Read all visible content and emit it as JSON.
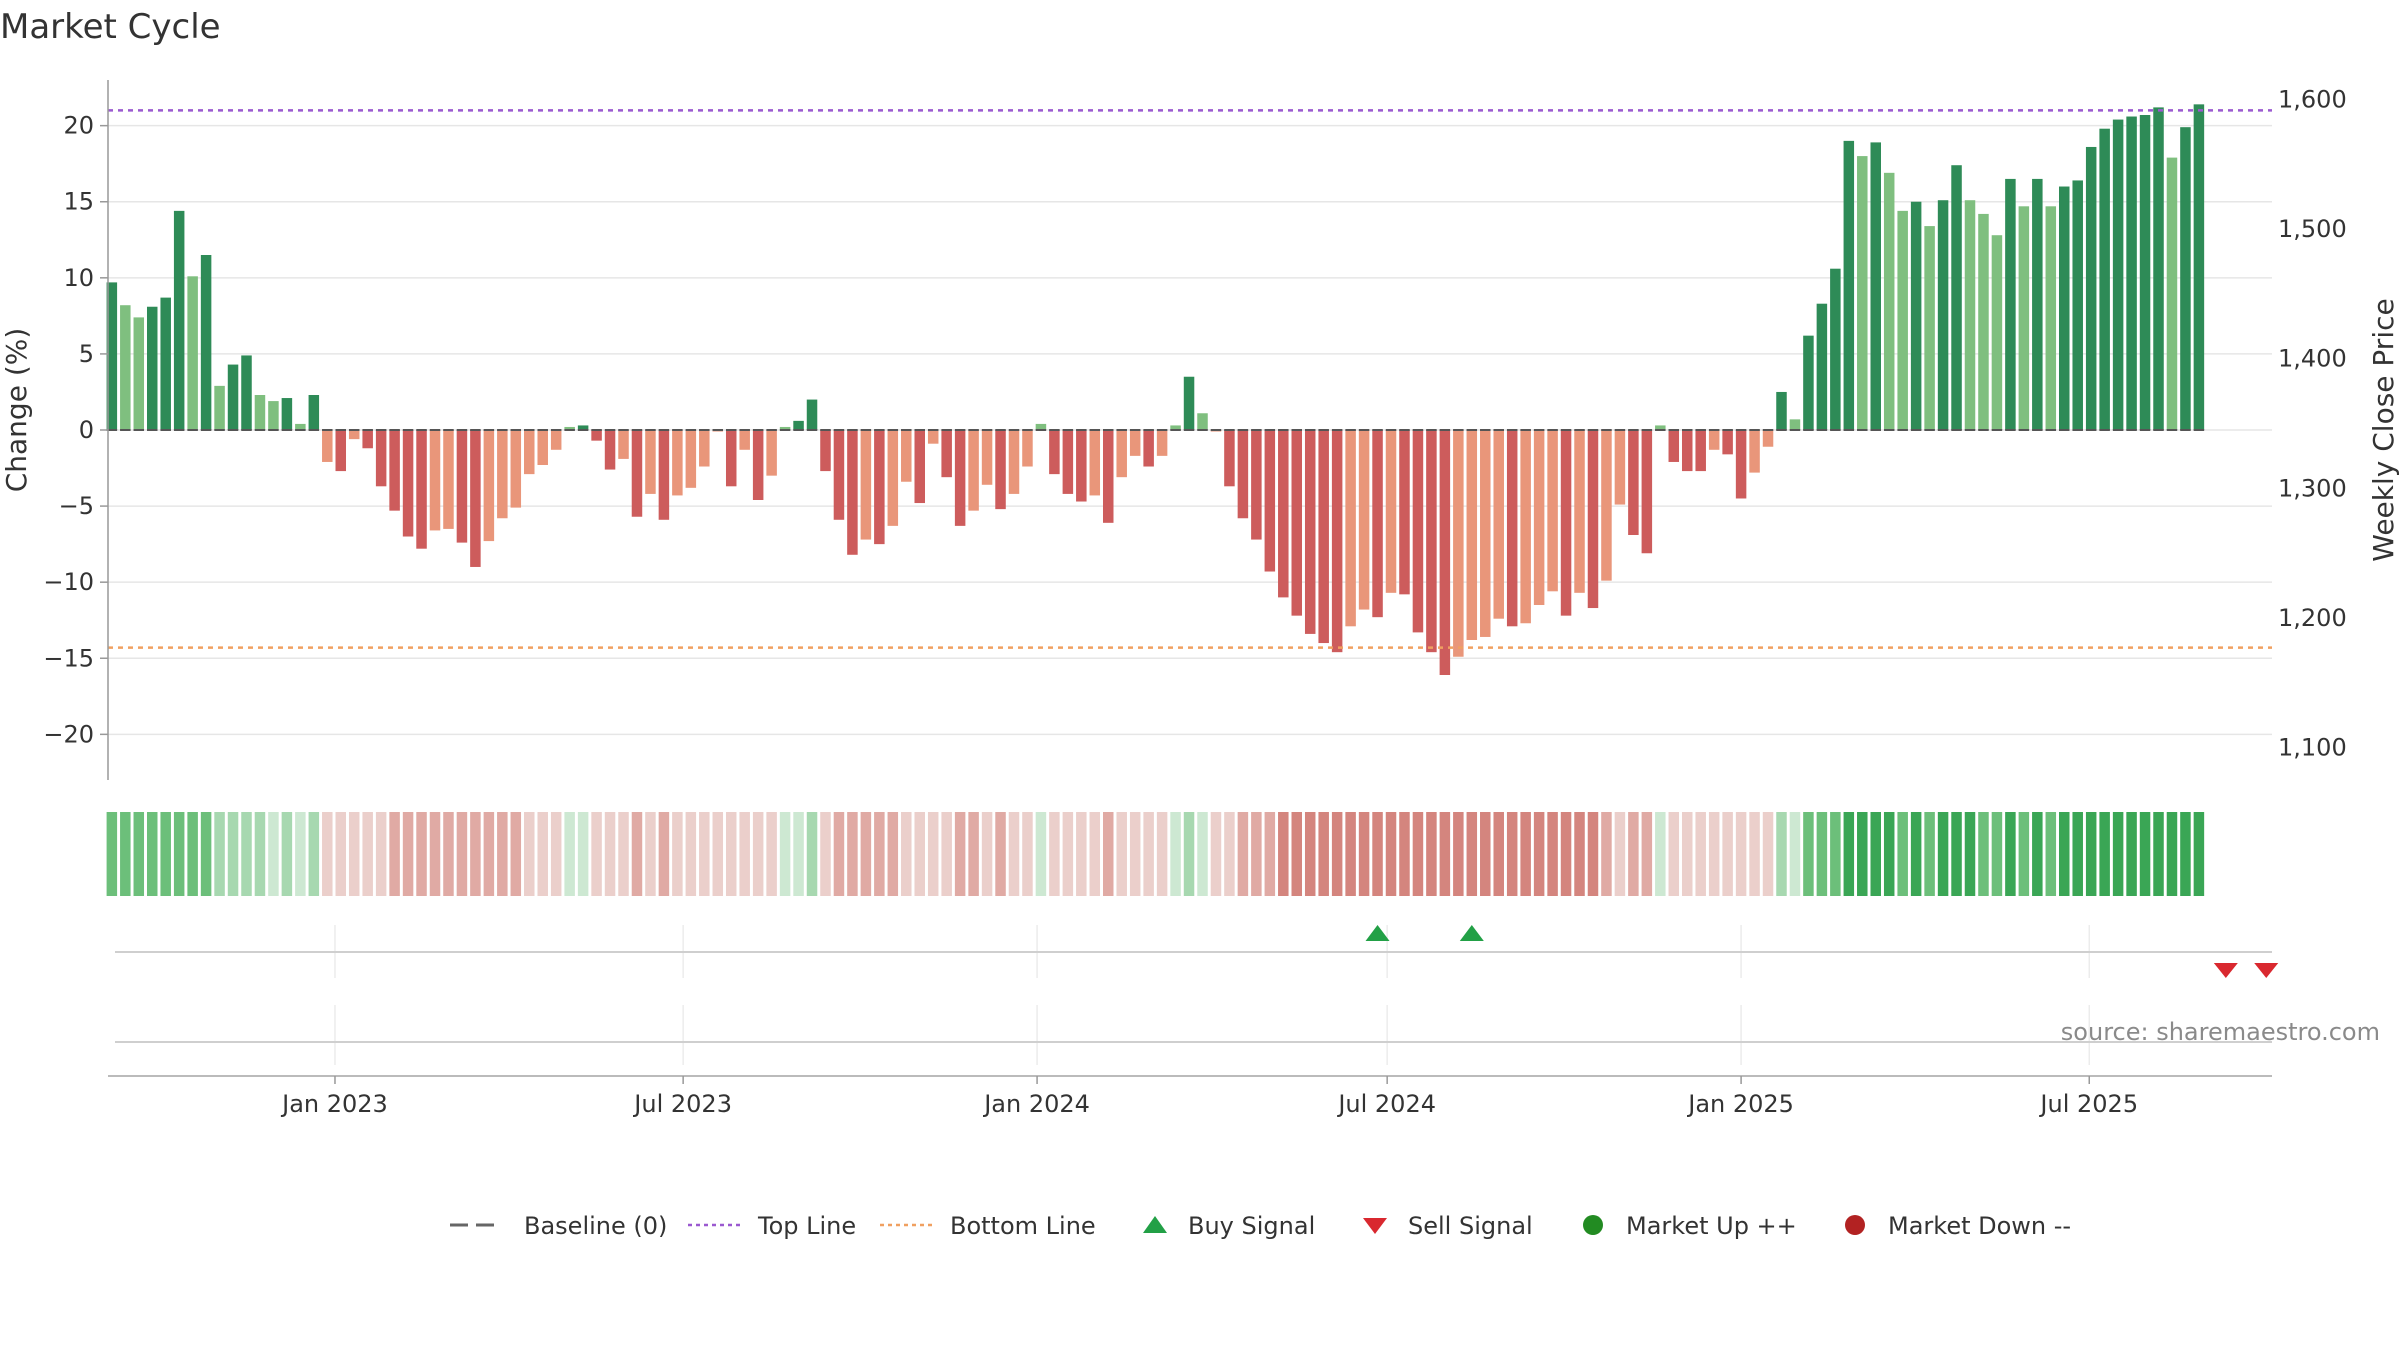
{
  "chart_data": {
    "type": "bar",
    "title": "Market Cycle",
    "ylabel": "Change (%)",
    "y2label": "Weekly Close Price",
    "ylim": [
      -23,
      23
    ],
    "y2lim": [
      1075,
      1615
    ],
    "yticks": [
      20,
      15,
      10,
      5,
      0,
      -5,
      -10,
      -15,
      -20
    ],
    "ytick_labels": [
      "20",
      "15",
      "10",
      "5",
      "0",
      "−5",
      "−10",
      "−15",
      "−20"
    ],
    "y2ticks": [
      1600,
      1500,
      1400,
      1300,
      1200,
      1100
    ],
    "y2tick_labels": [
      "1,600",
      "1,500",
      "1,400",
      "1,300",
      "1,200",
      "1,100"
    ],
    "x_start": "2022-09-05",
    "x_end": "2025-10-04",
    "x_ticks": [
      {
        "date": "2023-01-01",
        "label": "Jan 2023"
      },
      {
        "date": "2023-07-01",
        "label": "Jul 2023"
      },
      {
        "date": "2024-01-01",
        "label": "Jan 2024"
      },
      {
        "date": "2024-07-01",
        "label": "Jul 2024"
      },
      {
        "date": "2025-01-01",
        "label": "Jan 2025"
      },
      {
        "date": "2025-07-01",
        "label": "Jul 2025"
      }
    ],
    "first_week": "2022-09-07",
    "week_step_days": 7,
    "values": [
      9.7,
      8.2,
      7.4,
      8.1,
      8.7,
      14.4,
      10.1,
      11.5,
      2.9,
      4.3,
      4.9,
      2.3,
      1.9,
      2.1,
      0.4,
      2.3,
      -2.1,
      -2.7,
      -0.6,
      -1.2,
      -3.7,
      -5.3,
      -7.0,
      -7.8,
      -6.6,
      -6.5,
      -7.4,
      -9.0,
      -7.3,
      -5.8,
      -5.1,
      -2.9,
      -2.3,
      -1.3,
      0.2,
      0.3,
      -0.7,
      -2.6,
      -1.9,
      -5.7,
      -4.2,
      -5.9,
      -4.3,
      -3.8,
      -2.4,
      -0.1,
      -3.7,
      -1.3,
      -4.6,
      -3.0,
      0.2,
      0.6,
      2.0,
      -2.7,
      -5.9,
      -8.2,
      -7.2,
      -7.5,
      -6.3,
      -3.4,
      -4.8,
      -0.9,
      -3.1,
      -6.3,
      -5.3,
      -3.6,
      -5.2,
      -4.2,
      -2.4,
      0.4,
      -2.9,
      -4.2,
      -4.7,
      -4.3,
      -6.1,
      -3.1,
      -1.7,
      -2.4,
      -1.7,
      0.3,
      3.5,
      1.1,
      -0.1,
      -3.7,
      -5.8,
      -7.2,
      -9.3,
      -11.0,
      -12.2,
      -13.4,
      -14.0,
      -14.6,
      -12.9,
      -11.8,
      -12.3,
      -10.7,
      -10.8,
      -13.3,
      -14.6,
      -16.1,
      -14.9,
      -13.8,
      -13.6,
      -12.4,
      -12.9,
      -12.7,
      -11.5,
      -10.6,
      -12.2,
      -10.7,
      -11.7,
      -9.9,
      -4.9,
      -6.9,
      -8.1,
      0.3,
      -2.1,
      -2.7,
      -2.7,
      -1.3,
      -1.6,
      -4.5,
      -2.8,
      -1.1,
      2.5,
      0.7,
      6.2,
      8.3,
      10.6,
      19.0,
      18.0,
      18.9,
      16.9,
      14.4,
      15.0,
      13.4,
      15.1,
      17.4,
      15.1,
      14.2,
      12.8,
      16.5,
      14.7,
      16.5,
      14.7,
      16.0,
      16.4,
      18.6,
      19.8,
      20.4,
      20.6,
      20.7,
      21.2,
      17.9,
      19.9,
      21.4
    ],
    "bar_colors": {
      "up_strong": "#2e8b57",
      "up_light": "#7fbf7f",
      "down_strong": "#cd5c5c",
      "down_light": "#e9967a"
    },
    "top_line": 21.0,
    "bottom_line": -14.3,
    "buy_signals": [
      "2024-06-26",
      "2024-08-14"
    ],
    "sell_signals": [
      "2025-09-10",
      "2025-10-01"
    ],
    "legend_position": "bottom-center",
    "grid": true,
    "strip_colors": {
      "strong_up": "#3aa655",
      "up": "#6cbf7a",
      "mild_up": "#a7d8b0",
      "neutral_up": "#cde8d2",
      "mild_down": "#ebcfcb",
      "down": "#e0aaa4",
      "strong_down": "#d4857e"
    },
    "legend": [
      {
        "label": "Baseline (0)",
        "kind": "dash",
        "color": "#666666"
      },
      {
        "label": "Top Line",
        "kind": "dot",
        "color": "#9b59d0"
      },
      {
        "label": "Bottom Line",
        "kind": "dot",
        "color": "#f0a060"
      },
      {
        "label": "Buy Signal",
        "kind": "tri-up",
        "color": "#22a046"
      },
      {
        "label": "Sell Signal",
        "kind": "tri-down",
        "color": "#d9282f"
      },
      {
        "label": "Market Up ++",
        "kind": "circle",
        "color": "#228b22"
      },
      {
        "label": "Market Down --",
        "kind": "circle",
        "color": "#b22222"
      }
    ]
  },
  "source": "source: sharemaestro.com"
}
